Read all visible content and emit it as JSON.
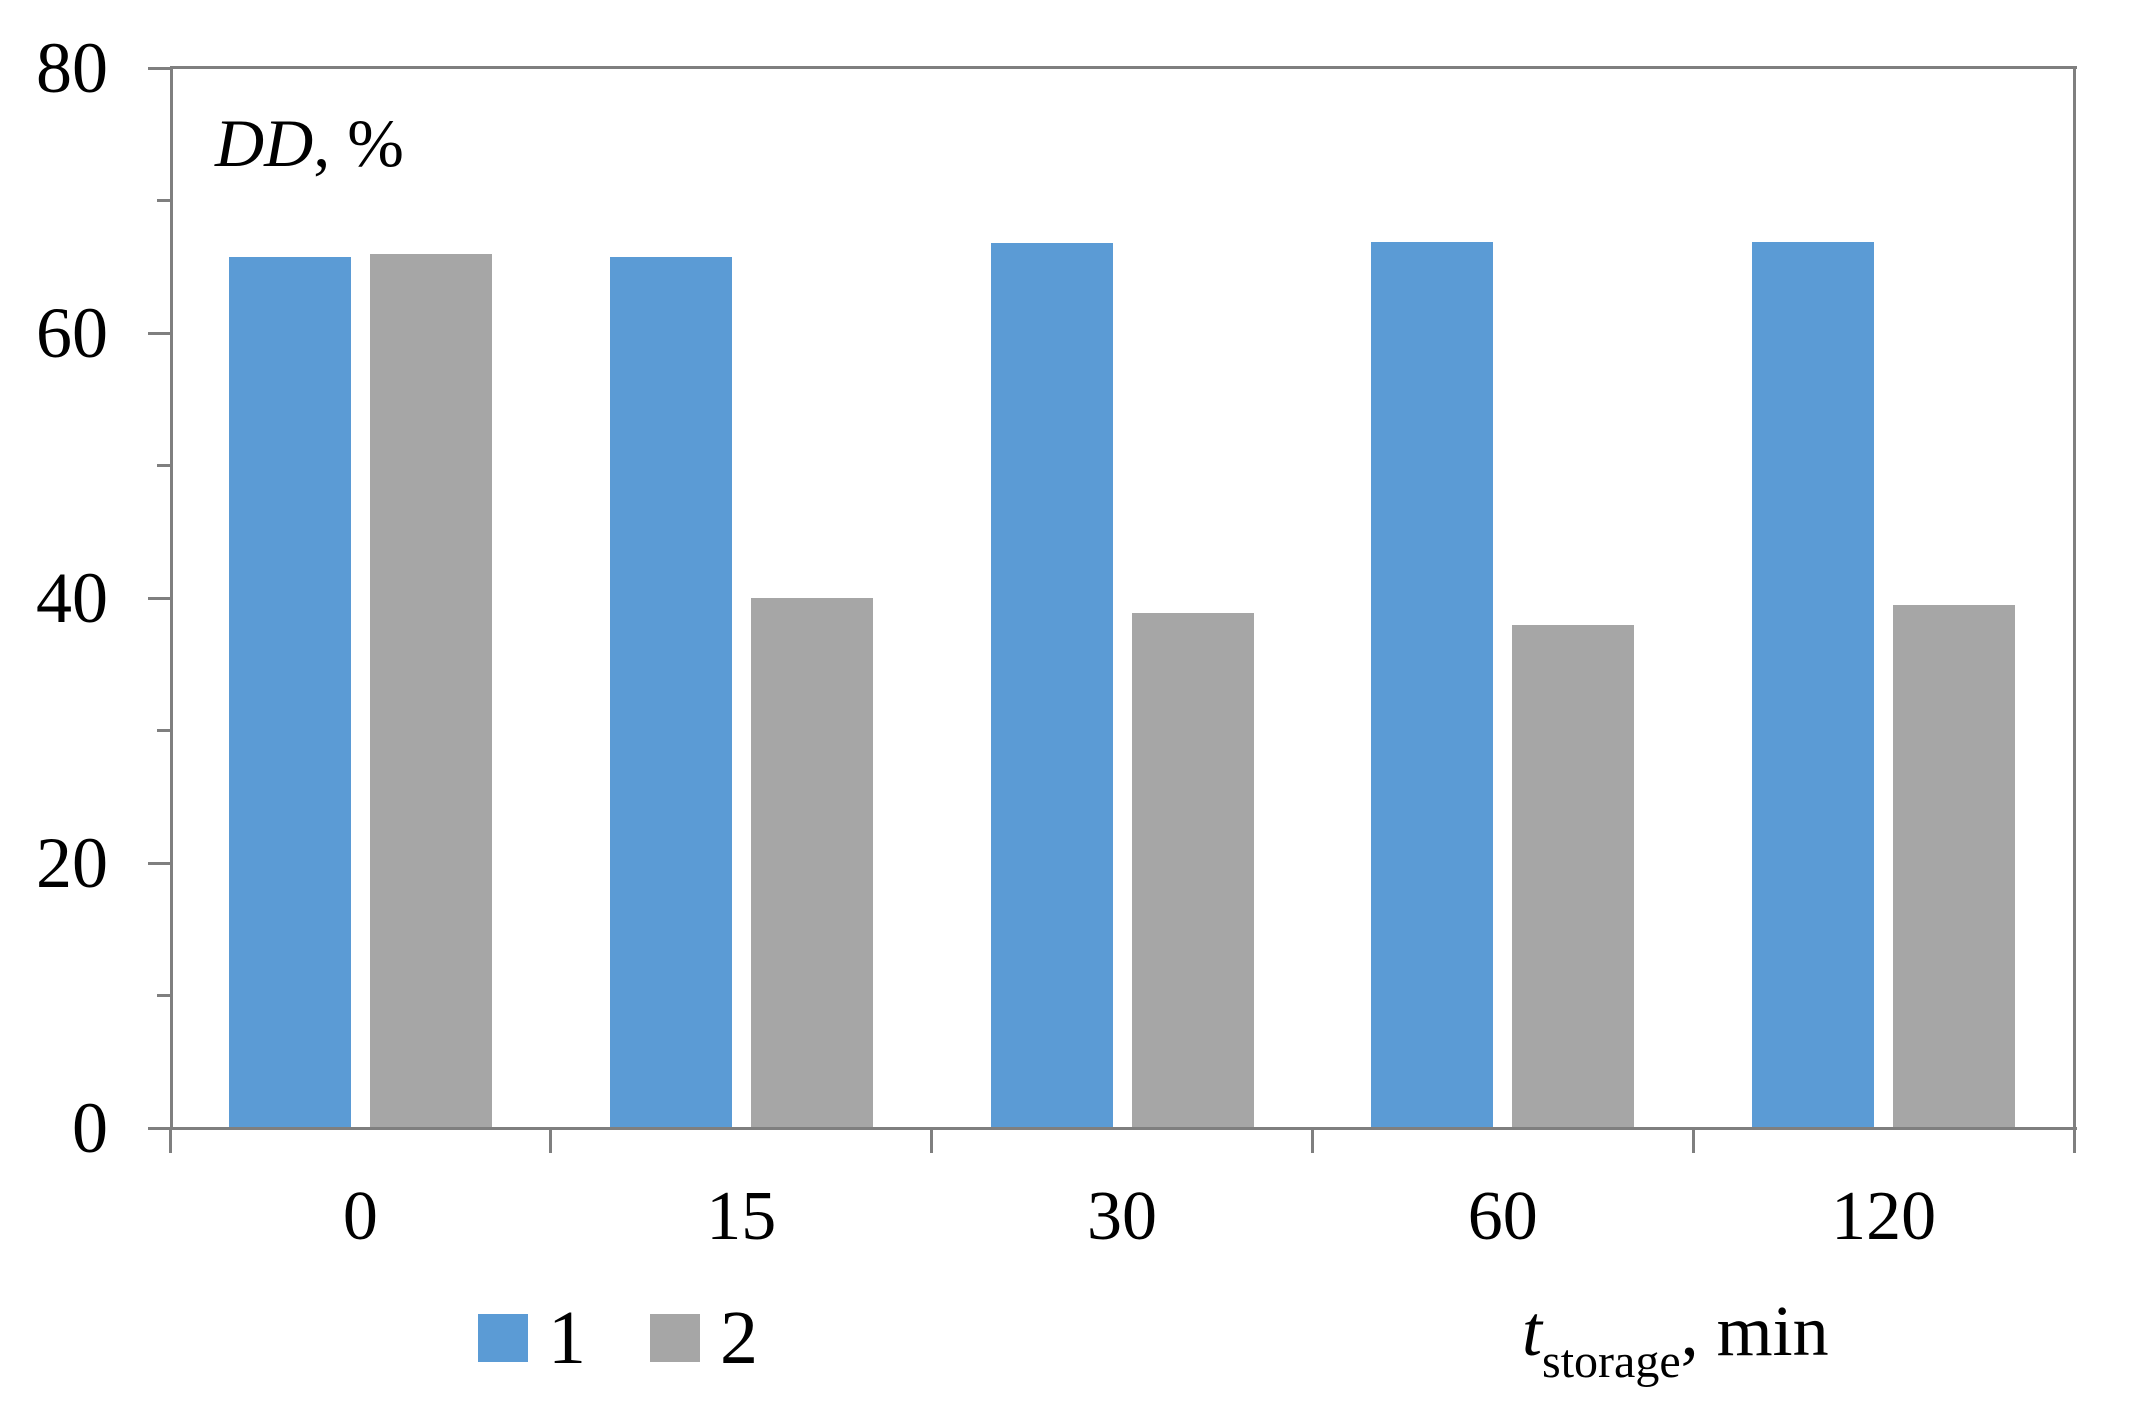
{
  "chart_data": {
    "type": "bar",
    "categories": [
      "0",
      "15",
      "30",
      "60",
      "120"
    ],
    "series": [
      {
        "name": "1",
        "color": "#5B9BD5",
        "values": [
          65.7,
          65.7,
          66.8,
          66.9,
          66.9
        ]
      },
      {
        "name": "2",
        "color": "#A6A6A6",
        "values": [
          66.0,
          40.0,
          38.9,
          38.0,
          39.5
        ]
      }
    ],
    "ylabel": {
      "symbol": "DD",
      "suffix": ", %"
    },
    "xlabel": {
      "symbol": "t",
      "subscript": "storage",
      "suffix": ", min"
    },
    "ylim": [
      0,
      80
    ],
    "yticks": [
      0,
      20,
      40,
      60,
      80
    ],
    "yticks_minor": [
      10,
      30,
      50,
      70
    ],
    "grid": false,
    "legend_position": "bottom-left",
    "axis_color": "#7F7F7F",
    "text_color": "#000000",
    "plot_border": [
      "top",
      "right",
      "left",
      "bottom"
    ]
  }
}
